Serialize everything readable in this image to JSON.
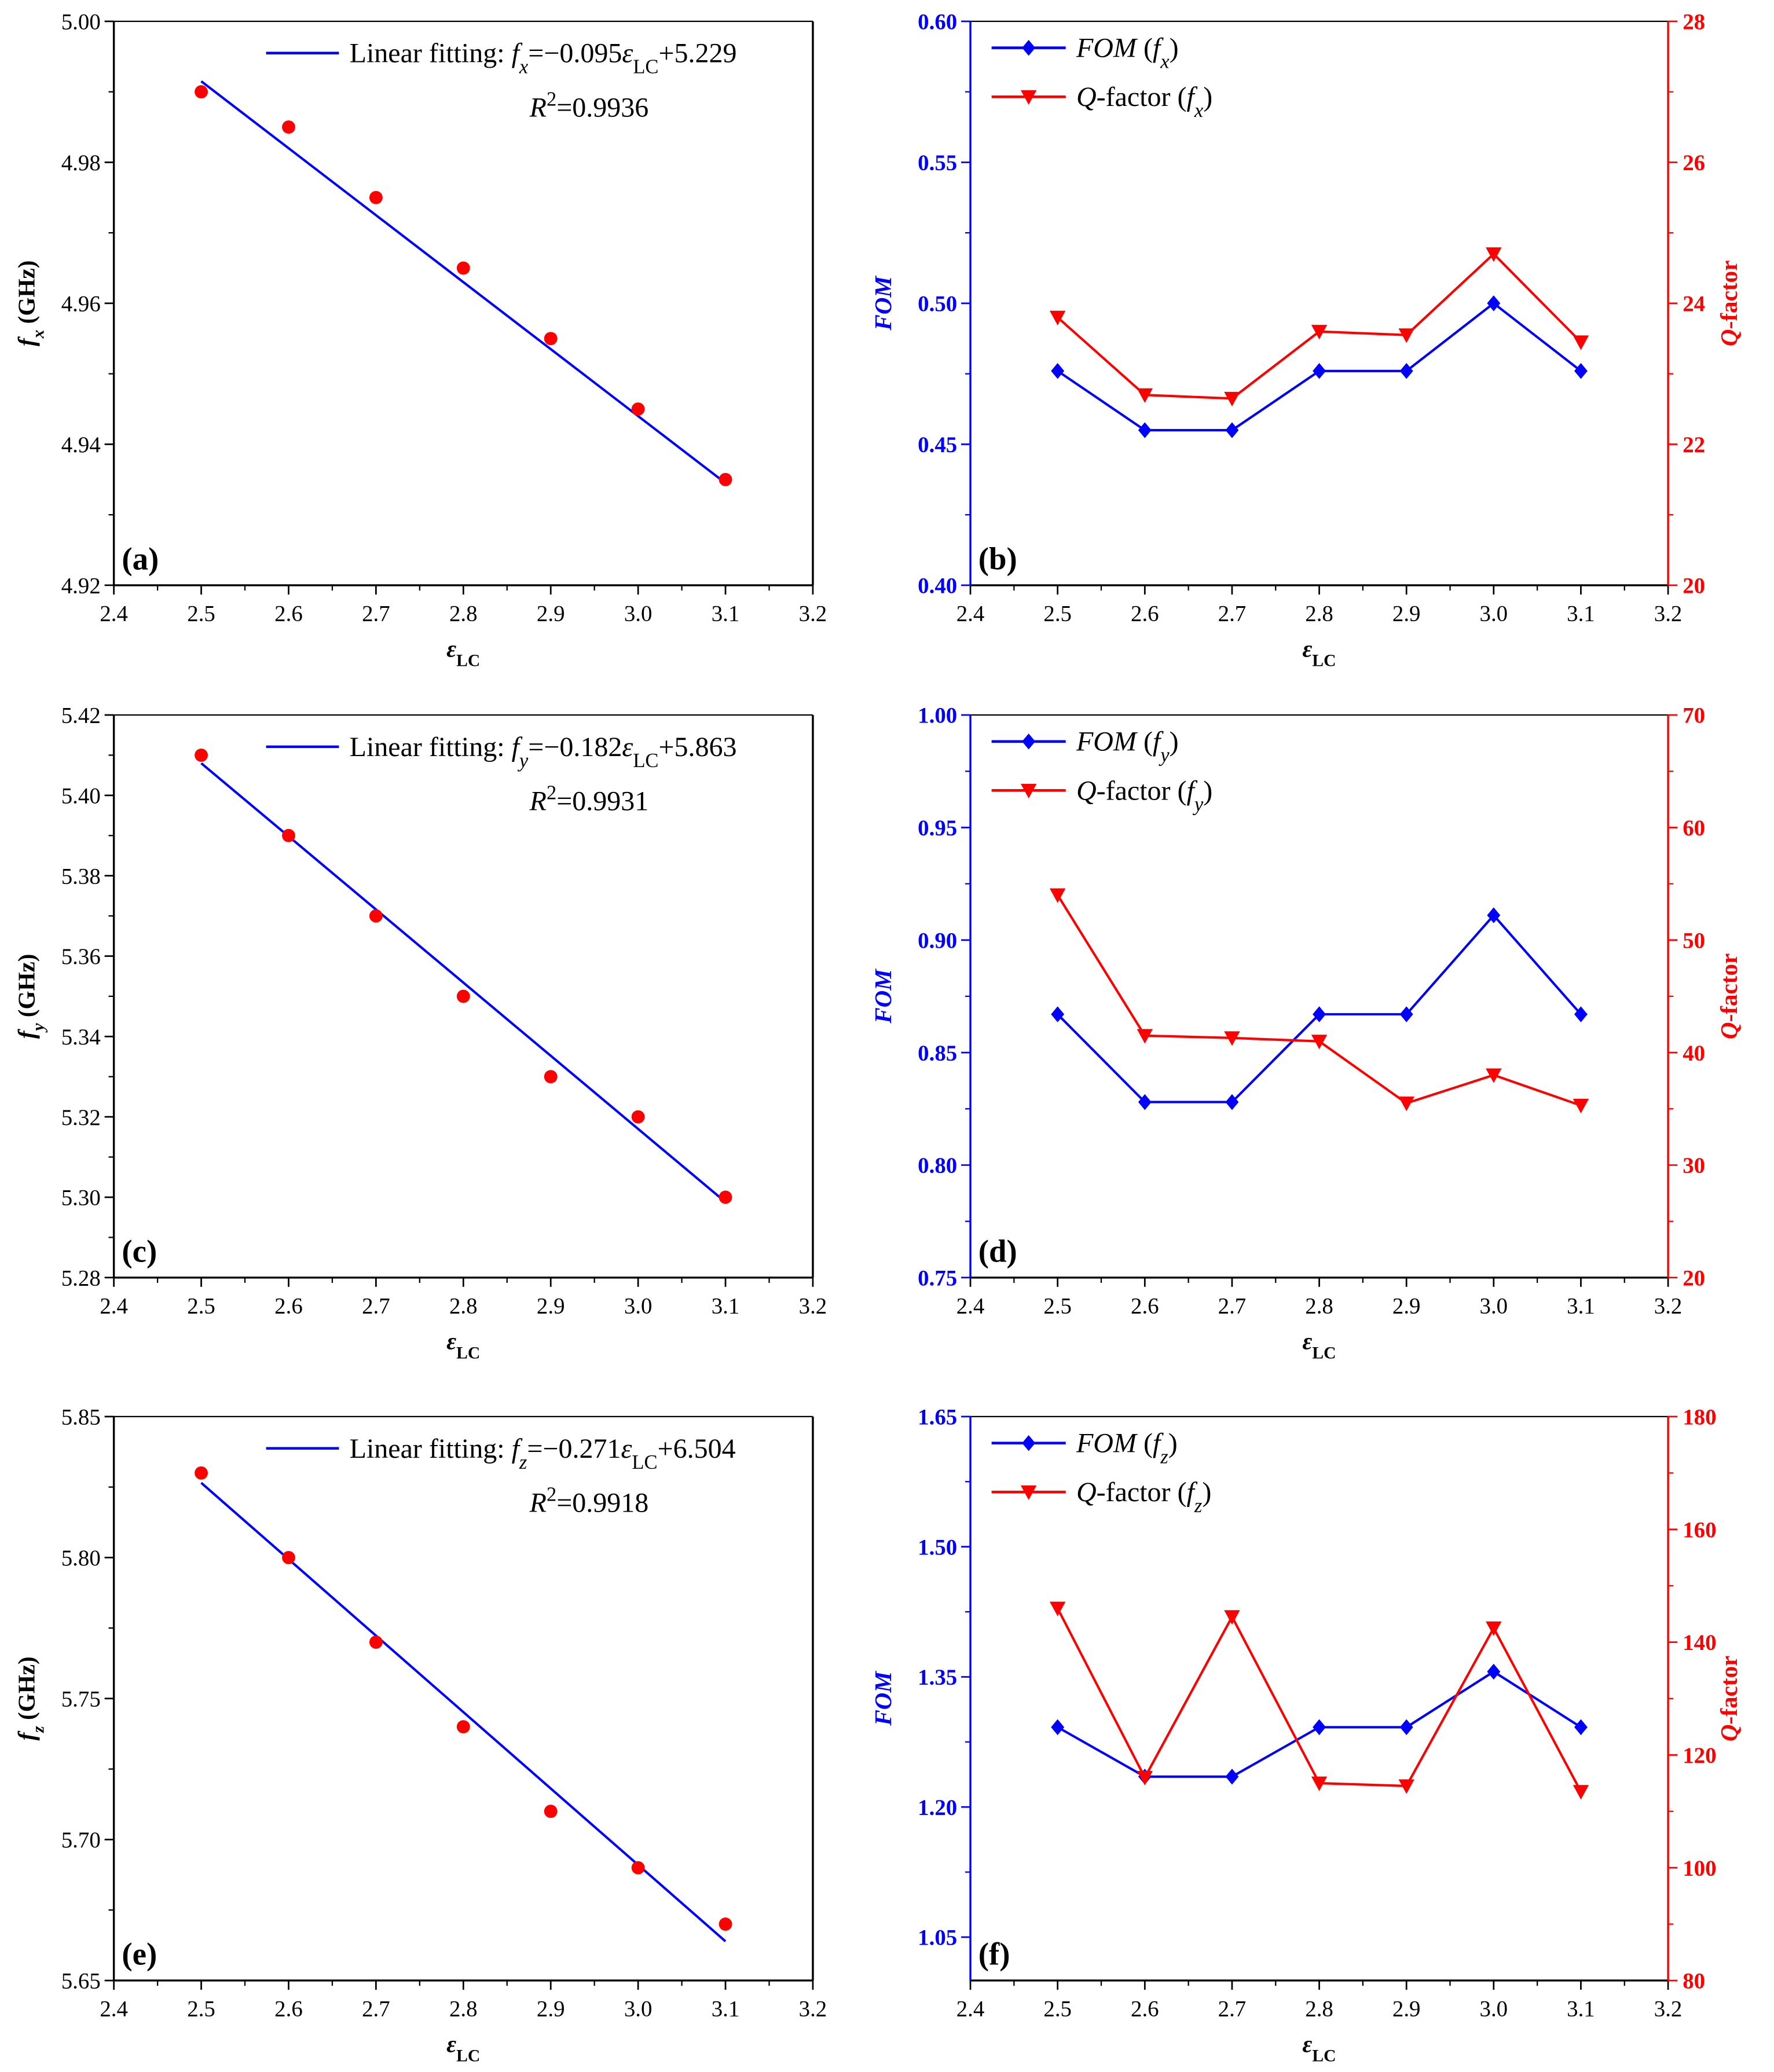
{
  "colors": {
    "fom": "#0000ff",
    "q": "#ff0000",
    "fit": "#0000ff",
    "points": "#ff0000",
    "axis": "#000000"
  },
  "chart_data": [
    {
      "id": "a",
      "type": "scatter",
      "letter": "(a)",
      "x": [
        2.5,
        2.6,
        2.7,
        2.8,
        2.9,
        3.0,
        3.1
      ],
      "y": [
        4.99,
        4.985,
        4.975,
        4.965,
        4.955,
        4.945,
        4.935
      ],
      "fit": {
        "slope": -0.095,
        "intercept": 5.229,
        "x_range": [
          2.5,
          3.1
        ]
      },
      "legend": [
        {
          "t": "Linear fitting: ",
          "s": ""
        },
        {
          "t": "f",
          "s": "i"
        },
        {
          "t": "x",
          "s": "isub"
        },
        {
          "t": "=−0.095",
          "s": ""
        },
        {
          "t": "ε",
          "s": "i"
        },
        {
          "t": "LC",
          "s": "sub"
        },
        {
          "t": "+5.229",
          "s": ""
        }
      ],
      "r2": [
        {
          "t": "R",
          "s": "i"
        },
        {
          "t": "2",
          "s": "sup"
        },
        {
          "t": "=0.9936",
          "s": ""
        }
      ],
      "ylabel": [
        {
          "t": "f",
          "s": "i"
        },
        {
          "t": "x",
          "s": "isub"
        },
        {
          "t": " (GHz)",
          "s": ""
        }
      ],
      "xlabel": [
        {
          "t": "ε",
          "s": "i"
        },
        {
          "t": "LC",
          "s": "sub"
        }
      ],
      "xlim": [
        2.4,
        3.2
      ],
      "xticks": [
        "2.4",
        "2.5",
        "2.6",
        "2.7",
        "2.8",
        "2.9",
        "3.0",
        "3.1",
        "3.2"
      ],
      "ylim": [
        4.92,
        5.0
      ],
      "yticks": [
        "4.92",
        "4.94",
        "4.96",
        "4.98",
        "5.00"
      ]
    },
    {
      "id": "b",
      "type": "line",
      "letter": "(b)",
      "x": [
        2.5,
        2.6,
        2.7,
        2.8,
        2.9,
        3.0,
        3.1
      ],
      "series": [
        {
          "name": "FOM (fx)",
          "axis": "left",
          "values": [
            0.476,
            0.455,
            0.455,
            0.476,
            0.476,
            0.5,
            0.476
          ],
          "legend": [
            {
              "t": "FOM",
              "s": "i"
            },
            {
              "t": " (",
              "s": ""
            },
            {
              "t": "f",
              "s": "i"
            },
            {
              "t": "x",
              "s": "isub"
            },
            {
              "t": ")",
              "s": ""
            }
          ]
        },
        {
          "name": "Q-factor (fx)",
          "axis": "right",
          "values": [
            23.8,
            22.7,
            22.65,
            23.6,
            23.55,
            24.7,
            23.45
          ],
          "legend": [
            {
              "t": "Q",
              "s": "i"
            },
            {
              "t": "-factor (",
              "s": ""
            },
            {
              "t": "f",
              "s": "i"
            },
            {
              "t": "x",
              "s": "isub"
            },
            {
              "t": ")",
              "s": ""
            }
          ]
        }
      ],
      "ylabel": [
        {
          "t": "FOM",
          "s": "i"
        }
      ],
      "y2label": [
        {
          "t": "Q",
          "s": "i"
        },
        {
          "t": "-factor",
          "s": ""
        }
      ],
      "xlabel": [
        {
          "t": "ε",
          "s": "i"
        },
        {
          "t": "LC",
          "s": "sub"
        }
      ],
      "xlim": [
        2.4,
        3.2
      ],
      "xticks": [
        "2.4",
        "2.5",
        "2.6",
        "2.7",
        "2.8",
        "2.9",
        "3.0",
        "3.1",
        "3.2"
      ],
      "ylim": [
        0.4,
        0.6
      ],
      "yticks": [
        "0.40",
        "0.45",
        "0.50",
        "0.55",
        "0.60"
      ],
      "y2lim": [
        20,
        28
      ],
      "y2ticks": [
        "20",
        "22",
        "24",
        "26",
        "28"
      ]
    },
    {
      "id": "c",
      "type": "scatter",
      "letter": "(c)",
      "x": [
        2.5,
        2.6,
        2.7,
        2.8,
        2.9,
        3.0,
        3.1
      ],
      "y": [
        5.41,
        5.39,
        5.37,
        5.35,
        5.33,
        5.32,
        5.3
      ],
      "fit": {
        "slope": -0.182,
        "intercept": 5.863,
        "x_range": [
          2.5,
          3.1
        ]
      },
      "legend": [
        {
          "t": "Linear fitting: ",
          "s": ""
        },
        {
          "t": "f",
          "s": "i"
        },
        {
          "t": "y",
          "s": "isub"
        },
        {
          "t": "=−0.182",
          "s": ""
        },
        {
          "t": "ε",
          "s": "i"
        },
        {
          "t": "LC",
          "s": "sub"
        },
        {
          "t": "+5.863",
          "s": ""
        }
      ],
      "r2": [
        {
          "t": "R",
          "s": "i"
        },
        {
          "t": "2",
          "s": "sup"
        },
        {
          "t": "=0.9931",
          "s": ""
        }
      ],
      "ylabel": [
        {
          "t": "f",
          "s": "i"
        },
        {
          "t": "y",
          "s": "isub"
        },
        {
          "t": " (GHz)",
          "s": ""
        }
      ],
      "xlabel": [
        {
          "t": "ε",
          "s": "i"
        },
        {
          "t": "LC",
          "s": "sub"
        }
      ],
      "xlim": [
        2.4,
        3.2
      ],
      "xticks": [
        "2.4",
        "2.5",
        "2.6",
        "2.7",
        "2.8",
        "2.9",
        "3.0",
        "3.1",
        "3.2"
      ],
      "ylim": [
        5.28,
        5.42
      ],
      "yticks": [
        "5.28",
        "5.30",
        "5.32",
        "5.34",
        "5.36",
        "5.38",
        "5.40",
        "5.42"
      ]
    },
    {
      "id": "d",
      "type": "line",
      "letter": "(d)",
      "x": [
        2.5,
        2.6,
        2.7,
        2.8,
        2.9,
        3.0,
        3.1
      ],
      "series": [
        {
          "name": "FOM (fy)",
          "axis": "left",
          "values": [
            0.867,
            0.828,
            0.828,
            0.867,
            0.867,
            0.911,
            0.867
          ],
          "legend": [
            {
              "t": "FOM",
              "s": "i"
            },
            {
              "t": " (",
              "s": ""
            },
            {
              "t": "f",
              "s": "i"
            },
            {
              "t": "y",
              "s": "isub"
            },
            {
              "t": ")",
              "s": ""
            }
          ]
        },
        {
          "name": "Q-factor (fy)",
          "axis": "right",
          "values": [
            54.0,
            41.5,
            41.3,
            41.0,
            35.5,
            38.0,
            35.3
          ],
          "legend": [
            {
              "t": "Q",
              "s": "i"
            },
            {
              "t": "-factor (",
              "s": ""
            },
            {
              "t": "f",
              "s": "i"
            },
            {
              "t": "y",
              "s": "isub"
            },
            {
              "t": ")",
              "s": ""
            }
          ]
        }
      ],
      "ylabel": [
        {
          "t": "FOM",
          "s": "i"
        }
      ],
      "y2label": [
        {
          "t": "Q",
          "s": "i"
        },
        {
          "t": "-factor",
          "s": ""
        }
      ],
      "xlabel": [
        {
          "t": "ε",
          "s": "i"
        },
        {
          "t": "LC",
          "s": "sub"
        }
      ],
      "xlim": [
        2.4,
        3.2
      ],
      "xticks": [
        "2.4",
        "2.5",
        "2.6",
        "2.7",
        "2.8",
        "2.9",
        "3.0",
        "3.1",
        "3.2"
      ],
      "ylim": [
        0.75,
        1.0
      ],
      "yticks": [
        "0.75",
        "0.80",
        "0.85",
        "0.90",
        "0.95",
        "1.00"
      ],
      "y2lim": [
        20,
        70
      ],
      "y2ticks": [
        "20",
        "30",
        "40",
        "50",
        "60",
        "70"
      ]
    },
    {
      "id": "e",
      "type": "scatter",
      "letter": "(e)",
      "x": [
        2.5,
        2.6,
        2.7,
        2.8,
        2.9,
        3.0,
        3.1
      ],
      "y": [
        5.83,
        5.8,
        5.77,
        5.74,
        5.71,
        5.69,
        5.67
      ],
      "fit": {
        "slope": -0.271,
        "intercept": 6.504,
        "x_range": [
          2.5,
          3.1
        ]
      },
      "legend": [
        {
          "t": "Linear fitting: ",
          "s": ""
        },
        {
          "t": "f",
          "s": "i"
        },
        {
          "t": "z",
          "s": "isub"
        },
        {
          "t": "=−0.271",
          "s": ""
        },
        {
          "t": "ε",
          "s": "i"
        },
        {
          "t": "LC",
          "s": "sub"
        },
        {
          "t": "+6.504",
          "s": ""
        }
      ],
      "r2": [
        {
          "t": "R",
          "s": "i"
        },
        {
          "t": "2",
          "s": "sup"
        },
        {
          "t": "=0.9918",
          "s": ""
        }
      ],
      "ylabel": [
        {
          "t": "f",
          "s": "i"
        },
        {
          "t": "z",
          "s": "isub"
        },
        {
          "t": " (GHz)",
          "s": ""
        }
      ],
      "xlabel": [
        {
          "t": "ε",
          "s": "i"
        },
        {
          "t": "LC",
          "s": "sub"
        }
      ],
      "xlim": [
        2.4,
        3.2
      ],
      "xticks": [
        "2.4",
        "2.5",
        "2.6",
        "2.7",
        "2.8",
        "2.9",
        "3.0",
        "3.1",
        "3.2"
      ],
      "ylim": [
        5.65,
        5.85
      ],
      "yticks": [
        "5.65",
        "5.70",
        "5.75",
        "5.80",
        "5.85"
      ]
    },
    {
      "id": "f",
      "type": "line",
      "letter": "(f)",
      "x": [
        2.5,
        2.6,
        2.7,
        2.8,
        2.9,
        3.0,
        3.1
      ],
      "series": [
        {
          "name": "FOM (fz)",
          "axis": "left",
          "values": [
            1.292,
            1.235,
            1.235,
            1.292,
            1.292,
            1.356,
            1.292
          ],
          "legend": [
            {
              "t": "FOM",
              "s": "i"
            },
            {
              "t": " (",
              "s": ""
            },
            {
              "t": "f",
              "s": "i"
            },
            {
              "t": "z",
              "s": "isub"
            },
            {
              "t": ")",
              "s": ""
            }
          ]
        },
        {
          "name": "Q-factor (fz)",
          "axis": "right",
          "values": [
            146,
            116,
            144.5,
            115,
            114.5,
            142.5,
            113.5
          ],
          "legend": [
            {
              "t": "Q",
              "s": "i"
            },
            {
              "t": "-factor (",
              "s": ""
            },
            {
              "t": "f",
              "s": "i"
            },
            {
              "t": "z",
              "s": "isub"
            },
            {
              "t": ")",
              "s": ""
            }
          ]
        }
      ],
      "ylabel": [
        {
          "t": "FOM",
          "s": "i"
        }
      ],
      "y2label": [
        {
          "t": "Q",
          "s": "i"
        },
        {
          "t": "-factor",
          "s": ""
        }
      ],
      "xlabel": [
        {
          "t": "ε",
          "s": "i"
        },
        {
          "t": "LC",
          "s": "sub"
        }
      ],
      "xlim": [
        2.4,
        3.2
      ],
      "xticks": [
        "2.4",
        "2.5",
        "2.6",
        "2.7",
        "2.8",
        "2.9",
        "3.0",
        "3.1",
        "3.2"
      ],
      "ylim": [
        1.0,
        1.65
      ],
      "yticks": [
        "1.05",
        "1.20",
        "1.35",
        "1.50",
        "1.65"
      ],
      "y2lim": [
        80,
        180
      ],
      "y2ticks": [
        "80",
        "100",
        "120",
        "140",
        "160",
        "180"
      ]
    }
  ]
}
